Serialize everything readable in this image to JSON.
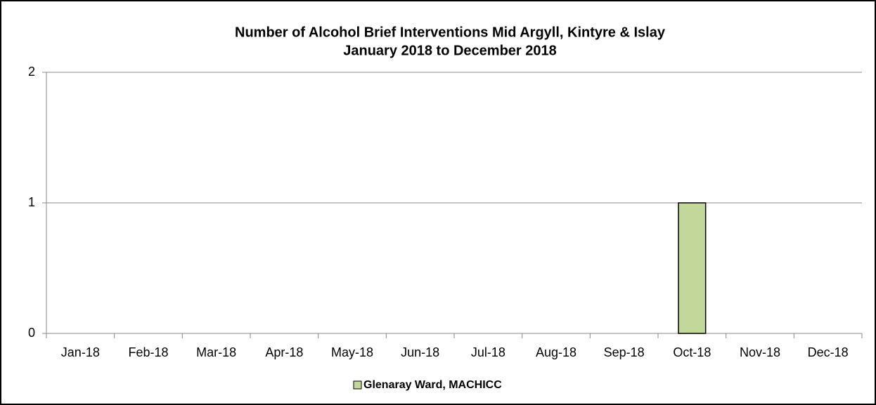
{
  "chart_data": {
    "type": "bar",
    "title": "Number of Alcohol Brief Interventions Mid Argyll, Kintyre & Islay",
    "subtitle": "January 2018 to December 2018",
    "categories": [
      "Jan-18",
      "Feb-18",
      "Mar-18",
      "Apr-18",
      "May-18",
      "Jun-18",
      "Jul-18",
      "Aug-18",
      "Sep-18",
      "Oct-18",
      "Nov-18",
      "Dec-18"
    ],
    "series": [
      {
        "name": "Glenaray Ward, MACHICC",
        "color": "#c4d79b",
        "values": [
          0,
          0,
          0,
          0,
          0,
          0,
          0,
          0,
          0,
          1,
          0,
          0
        ]
      }
    ],
    "ylim": [
      0,
      2
    ],
    "yticks": [
      0,
      1,
      2
    ],
    "grid": true,
    "legend": "bottom"
  }
}
